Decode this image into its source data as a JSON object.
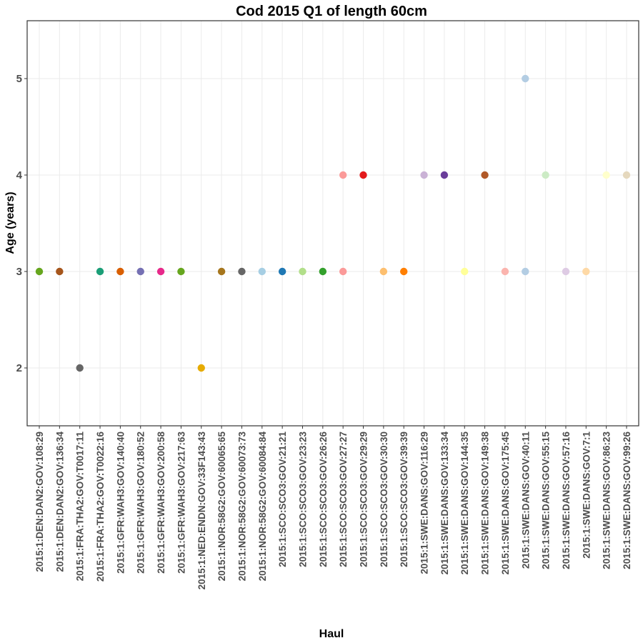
{
  "chart_data": {
    "type": "scatter",
    "title": "Cod 2015 Q1 of length 60cm",
    "xlabel": "Haul",
    "ylabel": "Age (years)",
    "ylim": [
      1.4,
      5.6
    ],
    "yticks": [
      2,
      3,
      4,
      5
    ],
    "grid": true,
    "legend": "none",
    "categories": [
      "2015:1:DEN:DAN2:GOV:108:29",
      "2015:1:DEN:DAN2:GOV:136:34",
      "2015:1:FRA:THA2:GOV:T0017:11",
      "2015:1:FRA:THA2:GOV:T0022:16",
      "2015:1:GFR:WAH3:GOV:140:40",
      "2015:1:GFR:WAH3:GOV:180:52",
      "2015:1:GFR:WAH3:GOV:200:58",
      "2015:1:GFR:WAH3:GOV:217:63",
      "2015:1:NED:ENDN:GOV:33F143:43",
      "2015:1:NOR:58G2:GOV:60065:65",
      "2015:1:NOR:58G2:GOV:60073:73",
      "2015:1:NOR:58G2:GOV:60084:84",
      "2015:1:SCO:SCO3:GOV:21:21",
      "2015:1:SCO:SCO3:GOV:23:23",
      "2015:1:SCO:SCO3:GOV:26:26",
      "2015:1:SCO:SCO3:GOV:27:27",
      "2015:1:SCO:SCO3:GOV:29:29",
      "2015:1:SCO:SCO3:GOV:30:30",
      "2015:1:SCO:SCO3:GOV:39:39",
      "2015:1:SWE:DANS:GOV:116:29",
      "2015:1:SWE:DANS:GOV:133:34",
      "2015:1:SWE:DANS:GOV:144:35",
      "2015:1:SWE:DANS:GOV:149:38",
      "2015:1:SWE:DANS:GOV:175:45",
      "2015:1:SWE:DANS:GOV:40:11",
      "2015:1:SWE:DANS:GOV:55:15",
      "2015:1:SWE:DANS:GOV:57:16",
      "2015:1:SWE:DANS:GOV:7:1",
      "2015:1:SWE:DANS:GOV:86:23",
      "2015:1:SWE:DANS:GOV:99:26"
    ],
    "points": [
      {
        "x": "2015:1:DEN:DAN2:GOV:108:29",
        "y": 3,
        "color": "#66a61e"
      },
      {
        "x": "2015:1:DEN:DAN2:GOV:136:34",
        "y": 3,
        "color": "#a6561c"
      },
      {
        "x": "2015:1:FRA:THA2:GOV:T0017:11",
        "y": 2,
        "color": "#666666"
      },
      {
        "x": "2015:1:FRA:THA2:GOV:T0022:16",
        "y": 3,
        "color": "#1b9e77"
      },
      {
        "x": "2015:1:GFR:WAH3:GOV:140:40",
        "y": 3,
        "color": "#d95f02"
      },
      {
        "x": "2015:1:GFR:WAH3:GOV:180:52",
        "y": 3,
        "color": "#7570b3"
      },
      {
        "x": "2015:1:GFR:WAH3:GOV:200:58",
        "y": 3,
        "color": "#e7298a"
      },
      {
        "x": "2015:1:GFR:WAH3:GOV:217:63",
        "y": 3,
        "color": "#66a61e"
      },
      {
        "x": "2015:1:NED:ENDN:GOV:33F143:43",
        "y": 2,
        "color": "#e6ab02"
      },
      {
        "x": "2015:1:NOR:58G2:GOV:60065:65",
        "y": 3,
        "color": "#a6761d"
      },
      {
        "x": "2015:1:NOR:58G2:GOV:60073:73",
        "y": 3,
        "color": "#666666"
      },
      {
        "x": "2015:1:NOR:58G2:GOV:60084:84",
        "y": 3,
        "color": "#a6cee3"
      },
      {
        "x": "2015:1:SCO:SCO3:GOV:21:21",
        "y": 3,
        "color": "#1f78b4"
      },
      {
        "x": "2015:1:SCO:SCO3:GOV:23:23",
        "y": 3,
        "color": "#b2df8a"
      },
      {
        "x": "2015:1:SCO:SCO3:GOV:26:26",
        "y": 3,
        "color": "#33a02c"
      },
      {
        "x": "2015:1:SCO:SCO3:GOV:27:27",
        "y": 3,
        "color": "#fb9a99"
      },
      {
        "x": "2015:1:SCO:SCO3:GOV:27:27",
        "y": 4,
        "color": "#fb9a99"
      },
      {
        "x": "2015:1:SCO:SCO3:GOV:29:29",
        "y": 4,
        "color": "#e31a1c"
      },
      {
        "x": "2015:1:SCO:SCO3:GOV:30:30",
        "y": 3,
        "color": "#fdbf6f"
      },
      {
        "x": "2015:1:SCO:SCO3:GOV:39:39",
        "y": 3,
        "color": "#ff7f00"
      },
      {
        "x": "2015:1:SWE:DANS:GOV:116:29",
        "y": 4,
        "color": "#cab2d6"
      },
      {
        "x": "2015:1:SWE:DANS:GOV:133:34",
        "y": 4,
        "color": "#6a3d9a"
      },
      {
        "x": "2015:1:SWE:DANS:GOV:144:35",
        "y": 3,
        "color": "#ffff99"
      },
      {
        "x": "2015:1:SWE:DANS:GOV:149:38",
        "y": 4,
        "color": "#b15928"
      },
      {
        "x": "2015:1:SWE:DANS:GOV:175:45",
        "y": 3,
        "color": "#fbb4ae"
      },
      {
        "x": "2015:1:SWE:DANS:GOV:40:11",
        "y": 5,
        "color": "#b3cde3"
      },
      {
        "x": "2015:1:SWE:DANS:GOV:40:11",
        "y": 3,
        "color": "#b3cde3"
      },
      {
        "x": "2015:1:SWE:DANS:GOV:55:15",
        "y": 4,
        "color": "#ccebc5"
      },
      {
        "x": "2015:1:SWE:DANS:GOV:57:16",
        "y": 3,
        "color": "#decbe4"
      },
      {
        "x": "2015:1:SWE:DANS:GOV:7:1",
        "y": 3,
        "color": "#fed9a6"
      },
      {
        "x": "2015:1:SWE:DANS:GOV:86:23",
        "y": 4,
        "color": "#ffffcc"
      },
      {
        "x": "2015:1:SWE:DANS:GOV:99:26",
        "y": 4,
        "color": "#e5d8bd"
      }
    ]
  }
}
